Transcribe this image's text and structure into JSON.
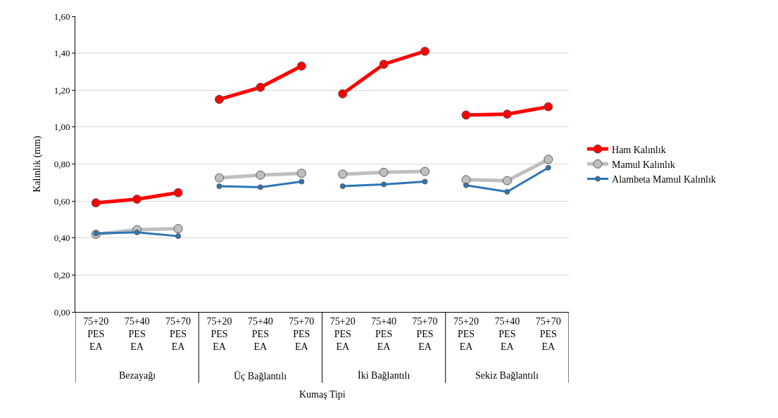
{
  "chart_data": {
    "type": "line",
    "xlabel": "Kumaş Tipi",
    "ylabel": "Kalınlık (mm)",
    "categories": [
      "75+20\nPES\nEA",
      "75+40\nPES\nEA",
      "75+70\nPES\nEA",
      "75+20\nPES\nEA",
      "75+40\nPES\nEA",
      "75+70\nPES\nEA",
      "75+20\nPES\nEA",
      "75+40\nPES\nEA",
      "75+70\nPES\nEA",
      "75+20\nPES\nEA",
      "75+40\nPES\nEA",
      "75+70\nPES\nEA"
    ],
    "annotations": [
      "Bezayağı",
      "Üç Bağlantılı",
      "İki Bağlantılı",
      "Sekiz Bağlantılı"
    ],
    "series": [
      {
        "name": "Ham Kalınlık",
        "color": "#ff0000",
        "values": [
          0.59,
          0.61,
          0.645,
          1.15,
          1.215,
          1.33,
          1.18,
          1.34,
          1.41,
          1.065,
          1.07,
          1.11
        ]
      },
      {
        "name": "Mamul Kalınlık",
        "color": "#bfbfbf",
        "values": [
          0.42,
          0.445,
          0.45,
          0.725,
          0.74,
          0.75,
          0.745,
          0.755,
          0.76,
          0.715,
          0.71,
          0.825
        ]
      },
      {
        "name": "Alambeta Mamul Kalınlık",
        "color": "#2e75b6",
        "values": [
          0.425,
          0.43,
          0.41,
          0.68,
          0.675,
          0.705,
          0.68,
          0.69,
          0.705,
          0.685,
          0.65,
          0.78
        ]
      }
    ],
    "ylim": [
      0,
      1.6
    ],
    "yticks": [
      {
        "value": 0,
        "label": "0,00"
      },
      {
        "value": 0.2,
        "label": "0,20"
      },
      {
        "value": 0.4,
        "label": "0,40"
      },
      {
        "value": 0.6,
        "label": "0,60"
      },
      {
        "value": 0.8,
        "label": "0,80"
      },
      {
        "value": 1.0,
        "label": "1,00"
      },
      {
        "value": 1.2,
        "label": "1,20"
      },
      {
        "value": 1.4,
        "label": "1,40"
      },
      {
        "value": 1.6,
        "label": "1,60"
      }
    ],
    "grid": "y",
    "legend": "right",
    "marker": "circle",
    "line_style": "solid"
  }
}
